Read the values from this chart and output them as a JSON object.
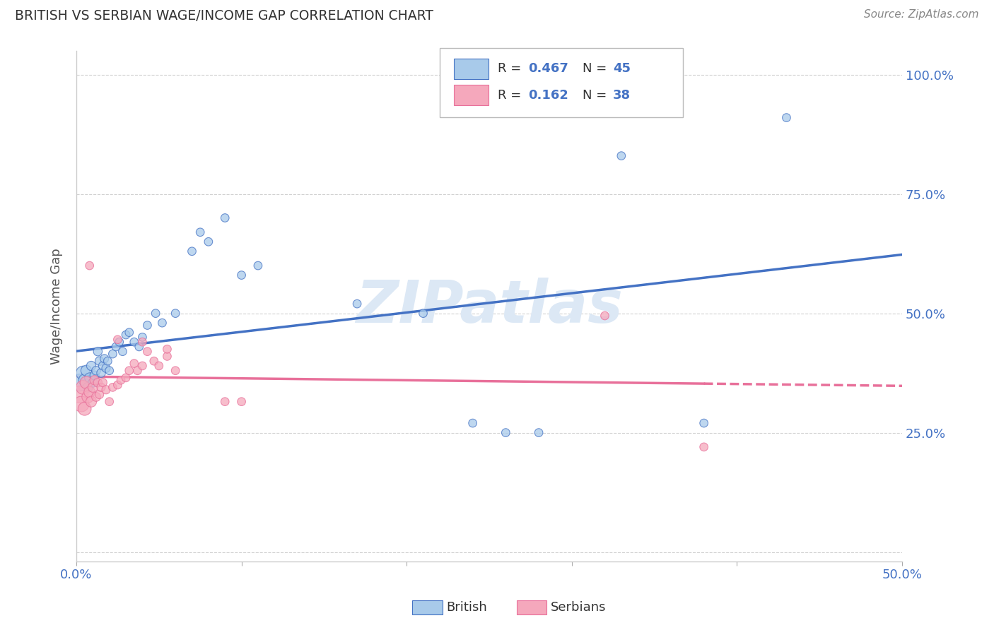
{
  "title": "BRITISH VS SERBIAN WAGE/INCOME GAP CORRELATION CHART",
  "source": "Source: ZipAtlas.com",
  "ylabel": "Wage/Income Gap",
  "watermark": "ZIPatlas",
  "british_color": "#A8CAEA",
  "serbian_color": "#F5A8BC",
  "british_line_color": "#4472C4",
  "serbian_line_color": "#E8709A",
  "british_R": 0.467,
  "british_N": 45,
  "serbian_R": 0.162,
  "serbian_N": 38,
  "xlim": [
    0.0,
    0.5
  ],
  "ylim": [
    -0.02,
    1.05
  ],
  "ytick_vals": [
    0.0,
    0.25,
    0.5,
    0.75,
    1.0
  ],
  "ytick_labels": [
    "",
    "25.0%",
    "50.0%",
    "75.0%",
    "100.0%"
  ],
  "british_scatter": [
    [
      0.002,
      0.355
    ],
    [
      0.004,
      0.375
    ],
    [
      0.005,
      0.36
    ],
    [
      0.006,
      0.38
    ],
    [
      0.007,
      0.345
    ],
    [
      0.008,
      0.365
    ],
    [
      0.009,
      0.39
    ],
    [
      0.01,
      0.355
    ],
    [
      0.011,
      0.37
    ],
    [
      0.012,
      0.38
    ],
    [
      0.013,
      0.42
    ],
    [
      0.014,
      0.4
    ],
    [
      0.015,
      0.375
    ],
    [
      0.016,
      0.39
    ],
    [
      0.017,
      0.405
    ],
    [
      0.018,
      0.385
    ],
    [
      0.019,
      0.4
    ],
    [
      0.02,
      0.38
    ],
    [
      0.022,
      0.415
    ],
    [
      0.024,
      0.43
    ],
    [
      0.026,
      0.44
    ],
    [
      0.028,
      0.42
    ],
    [
      0.03,
      0.455
    ],
    [
      0.032,
      0.46
    ],
    [
      0.035,
      0.44
    ],
    [
      0.038,
      0.43
    ],
    [
      0.04,
      0.45
    ],
    [
      0.043,
      0.475
    ],
    [
      0.048,
      0.5
    ],
    [
      0.052,
      0.48
    ],
    [
      0.06,
      0.5
    ],
    [
      0.07,
      0.63
    ],
    [
      0.075,
      0.67
    ],
    [
      0.08,
      0.65
    ],
    [
      0.09,
      0.7
    ],
    [
      0.1,
      0.58
    ],
    [
      0.11,
      0.6
    ],
    [
      0.17,
      0.52
    ],
    [
      0.21,
      0.5
    ],
    [
      0.24,
      0.27
    ],
    [
      0.26,
      0.25
    ],
    [
      0.28,
      0.25
    ],
    [
      0.33,
      0.83
    ],
    [
      0.38,
      0.27
    ],
    [
      0.43,
      0.91
    ]
  ],
  "british_sizes": [
    300,
    200,
    150,
    120,
    100,
    100,
    90,
    90,
    85,
    80,
    80,
    80,
    80,
    75,
    75,
    75,
    70,
    70,
    70,
    70,
    70,
    70,
    70,
    70,
    70,
    70,
    70,
    70,
    70,
    70,
    70,
    70,
    70,
    70,
    70,
    70,
    70,
    70,
    70,
    70,
    70,
    70,
    70,
    70,
    70
  ],
  "serbian_scatter": [
    [
      0.002,
      0.33
    ],
    [
      0.003,
      0.31
    ],
    [
      0.004,
      0.345
    ],
    [
      0.005,
      0.3
    ],
    [
      0.006,
      0.355
    ],
    [
      0.007,
      0.325
    ],
    [
      0.008,
      0.335
    ],
    [
      0.009,
      0.315
    ],
    [
      0.01,
      0.345
    ],
    [
      0.011,
      0.36
    ],
    [
      0.012,
      0.325
    ],
    [
      0.013,
      0.355
    ],
    [
      0.014,
      0.33
    ],
    [
      0.015,
      0.345
    ],
    [
      0.016,
      0.355
    ],
    [
      0.018,
      0.34
    ],
    [
      0.02,
      0.315
    ],
    [
      0.022,
      0.345
    ],
    [
      0.025,
      0.35
    ],
    [
      0.027,
      0.36
    ],
    [
      0.03,
      0.365
    ],
    [
      0.032,
      0.38
    ],
    [
      0.035,
      0.395
    ],
    [
      0.037,
      0.38
    ],
    [
      0.04,
      0.39
    ],
    [
      0.043,
      0.42
    ],
    [
      0.047,
      0.4
    ],
    [
      0.05,
      0.39
    ],
    [
      0.055,
      0.41
    ],
    [
      0.06,
      0.38
    ],
    [
      0.008,
      0.6
    ],
    [
      0.025,
      0.445
    ],
    [
      0.04,
      0.44
    ],
    [
      0.055,
      0.425
    ],
    [
      0.09,
      0.315
    ],
    [
      0.1,
      0.315
    ],
    [
      0.32,
      0.495
    ],
    [
      0.38,
      0.22
    ]
  ],
  "serbian_sizes": [
    300,
    250,
    200,
    180,
    160,
    150,
    130,
    120,
    100,
    90,
    85,
    80,
    75,
    75,
    75,
    75,
    70,
    70,
    70,
    70,
    70,
    70,
    70,
    70,
    70,
    70,
    70,
    70,
    70,
    70,
    70,
    70,
    70,
    70,
    70,
    70,
    70,
    70
  ]
}
